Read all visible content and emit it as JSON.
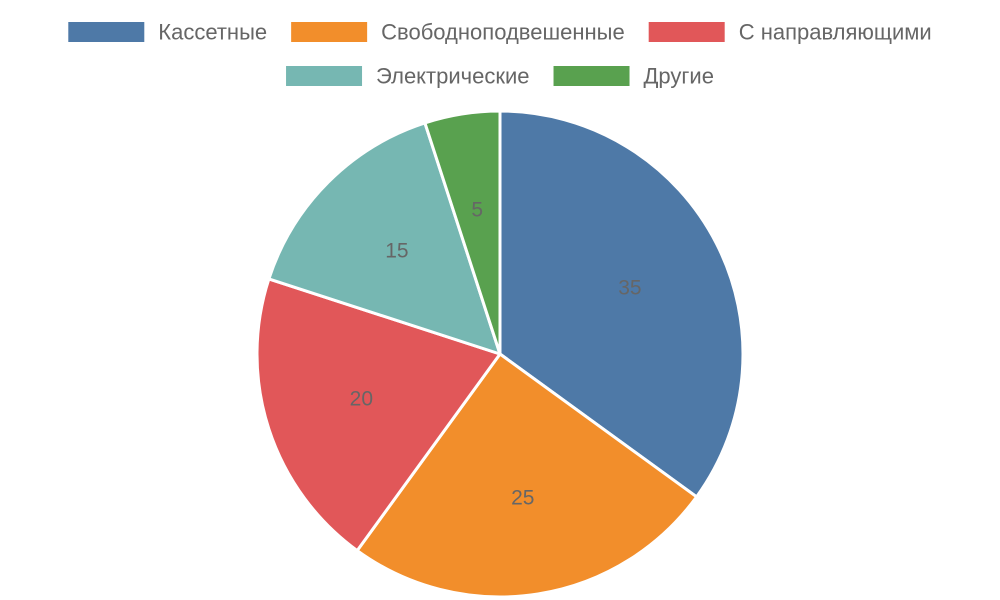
{
  "chart_data": {
    "type": "pie",
    "categories": [
      "Кассетные",
      "Свободноподвешенные",
      "С направляющими",
      "Электрические",
      "Другие"
    ],
    "values": [
      35,
      25,
      20,
      15,
      5
    ],
    "colors": [
      "#4e79a7",
      "#f28e2b",
      "#e15759",
      "#76b7b2",
      "#59a14f"
    ],
    "legend_position": "top",
    "data_labels": true
  }
}
